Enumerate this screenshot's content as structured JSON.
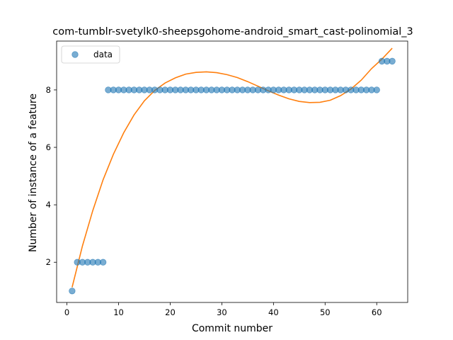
{
  "chart_data": {
    "type": "scatter",
    "title": "com-tumblr-svetylk0-sheepsgohome-android_smart_cast-polinomial_3",
    "xlabel": "Commit number",
    "ylabel": "Number of instance of a feature",
    "xlim": [
      -2,
      66
    ],
    "ylim": [
      0.6,
      9.7
    ],
    "xticks": [
      0,
      10,
      20,
      30,
      40,
      50,
      60
    ],
    "yticks": [
      2,
      4,
      6,
      8
    ],
    "legend": {
      "placement": "top-left",
      "entries": [
        "data"
      ]
    },
    "colors": {
      "data": "#1f77b4",
      "fit": "#ff7f0e"
    },
    "series": [
      {
        "name": "data",
        "style": "markers",
        "x": [
          1,
          2,
          3,
          4,
          5,
          6,
          7,
          8,
          9,
          10,
          11,
          12,
          13,
          14,
          15,
          16,
          17,
          18,
          19,
          20,
          21,
          22,
          23,
          24,
          25,
          26,
          27,
          28,
          29,
          30,
          31,
          32,
          33,
          34,
          35,
          36,
          37,
          38,
          39,
          40,
          41,
          42,
          43,
          44,
          45,
          46,
          47,
          48,
          49,
          50,
          51,
          52,
          53,
          54,
          55,
          56,
          57,
          58,
          59,
          60,
          61,
          62,
          63
        ],
        "y": [
          1,
          2,
          2,
          2,
          2,
          2,
          2,
          8,
          8,
          8,
          8,
          8,
          8,
          8,
          8,
          8,
          8,
          8,
          8,
          8,
          8,
          8,
          8,
          8,
          8,
          8,
          8,
          8,
          8,
          8,
          8,
          8,
          8,
          8,
          8,
          8,
          8,
          8,
          8,
          8,
          8,
          8,
          8,
          8,
          8,
          8,
          8,
          8,
          8,
          8,
          8,
          8,
          8,
          8,
          8,
          8,
          8,
          8,
          8,
          8,
          9,
          9,
          9
        ]
      },
      {
        "style": "line",
        "x": [
          1,
          3,
          5,
          7,
          9,
          11,
          13,
          15,
          17,
          19,
          21,
          23,
          25,
          27,
          29,
          31,
          33,
          35,
          37,
          39,
          41,
          43,
          45,
          47,
          49,
          51,
          53,
          55,
          57,
          59,
          61,
          63
        ],
        "y": [
          1.13,
          2.57,
          3.8,
          4.87,
          5.76,
          6.51,
          7.13,
          7.62,
          7.98,
          8.24,
          8.42,
          8.55,
          8.61,
          8.63,
          8.6,
          8.53,
          8.43,
          8.29,
          8.13,
          7.97,
          7.82,
          7.69,
          7.6,
          7.56,
          7.57,
          7.64,
          7.8,
          8.03,
          8.34,
          8.74,
          9.07,
          9.45
        ]
      }
    ]
  }
}
